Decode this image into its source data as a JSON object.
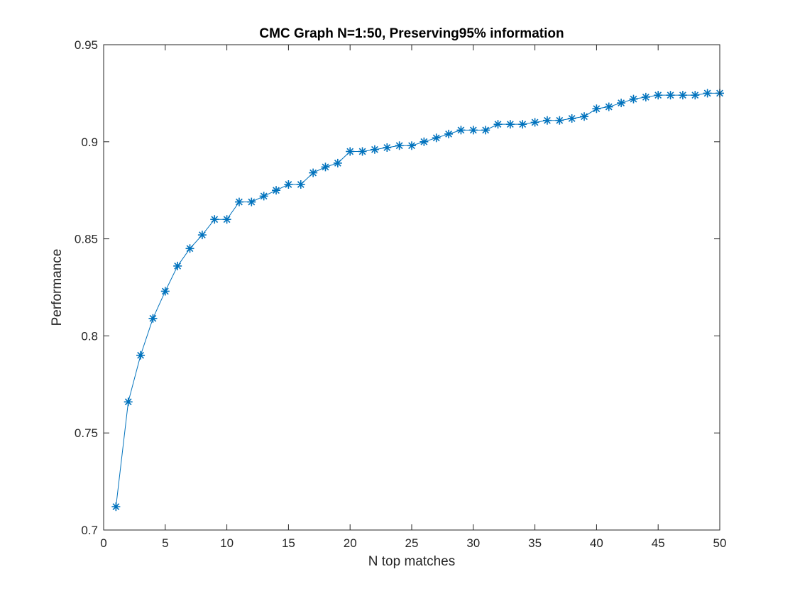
{
  "chart_data": {
    "type": "line",
    "title": "CMC Graph N=1:50, Preserving95% information",
    "xlabel": "N top matches",
    "ylabel": "Performance",
    "xlim": [
      0,
      50
    ],
    "ylim": [
      0.7,
      0.95
    ],
    "xticks": [
      0,
      5,
      10,
      15,
      20,
      25,
      30,
      35,
      40,
      45,
      50
    ],
    "yticks": [
      0.7,
      0.75,
      0.8,
      0.85,
      0.9,
      0.95
    ],
    "xtick_labels": [
      "0",
      "5",
      "10",
      "15",
      "20",
      "25",
      "30",
      "35",
      "40",
      "45",
      "50"
    ],
    "ytick_labels": [
      "0.7",
      "0.75",
      "0.8",
      "0.85",
      "0.9",
      "0.95"
    ],
    "grid": false,
    "marker": "asterisk",
    "color": "#0072BD",
    "series": [
      {
        "x": [
          1,
          2,
          3,
          4,
          5,
          6,
          7,
          8,
          9,
          10,
          11,
          12,
          13,
          14,
          15,
          16,
          17,
          18,
          19,
          20,
          21,
          22,
          23,
          24,
          25,
          26,
          27,
          28,
          29,
          30,
          31,
          32,
          33,
          34,
          35,
          36,
          37,
          38,
          39,
          40,
          41,
          42,
          43,
          44,
          45,
          46,
          47,
          48,
          49,
          50
        ],
        "values": [
          0.712,
          0.766,
          0.79,
          0.809,
          0.823,
          0.836,
          0.845,
          0.852,
          0.86,
          0.86,
          0.869,
          0.869,
          0.872,
          0.875,
          0.878,
          0.878,
          0.884,
          0.887,
          0.889,
          0.895,
          0.895,
          0.896,
          0.897,
          0.898,
          0.898,
          0.9,
          0.902,
          0.904,
          0.906,
          0.906,
          0.906,
          0.909,
          0.909,
          0.909,
          0.91,
          0.911,
          0.911,
          0.912,
          0.913,
          0.917,
          0.918,
          0.92,
          0.922,
          0.923,
          0.924,
          0.924,
          0.924,
          0.924,
          0.925,
          0.925
        ]
      }
    ]
  }
}
